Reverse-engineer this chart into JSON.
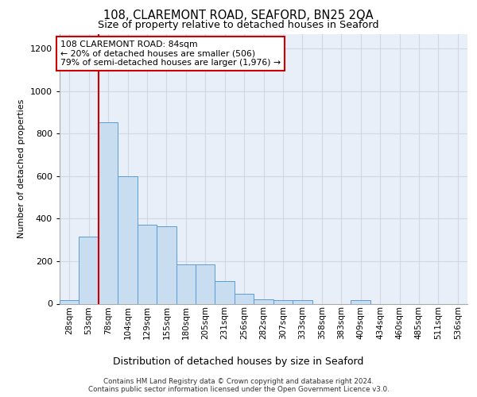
{
  "title": "108, CLAREMONT ROAD, SEAFORD, BN25 2QA",
  "subtitle": "Size of property relative to detached houses in Seaford",
  "xlabel": "Distribution of detached houses by size in Seaford",
  "ylabel": "Number of detached properties",
  "categories": [
    "28sqm",
    "53sqm",
    "78sqm",
    "104sqm",
    "129sqm",
    "155sqm",
    "180sqm",
    "205sqm",
    "231sqm",
    "256sqm",
    "282sqm",
    "307sqm",
    "333sqm",
    "358sqm",
    "383sqm",
    "409sqm",
    "434sqm",
    "460sqm",
    "485sqm",
    "511sqm",
    "536sqm"
  ],
  "values": [
    15,
    315,
    855,
    600,
    370,
    365,
    185,
    185,
    105,
    45,
    20,
    15,
    15,
    0,
    0,
    15,
    0,
    0,
    0,
    0,
    0
  ],
  "bar_color": "#c9ddf0",
  "bar_edge_color": "#5b9bd5",
  "vline_x_idx": 2,
  "vline_color": "#cc0000",
  "annotation_text": "108 CLAREMONT ROAD: 84sqm\n← 20% of detached houses are smaller (506)\n79% of semi-detached houses are larger (1,976) →",
  "annotation_box_color": "white",
  "annotation_box_edge": "#cc0000",
  "ylim": [
    0,
    1270
  ],
  "yticks": [
    0,
    200,
    400,
    600,
    800,
    1000,
    1200
  ],
  "grid_color": "#d0d8e4",
  "bg_color": "#e8eff8",
  "title_fontsize": 10.5,
  "subtitle_fontsize": 9.2,
  "ylabel_fontsize": 8,
  "xlabel_fontsize": 9,
  "tick_fontsize": 7.5,
  "annot_fontsize": 7.8,
  "footer_line1": "Contains HM Land Registry data © Crown copyright and database right 2024.",
  "footer_line2": "Contains public sector information licensed under the Open Government Licence v3.0."
}
